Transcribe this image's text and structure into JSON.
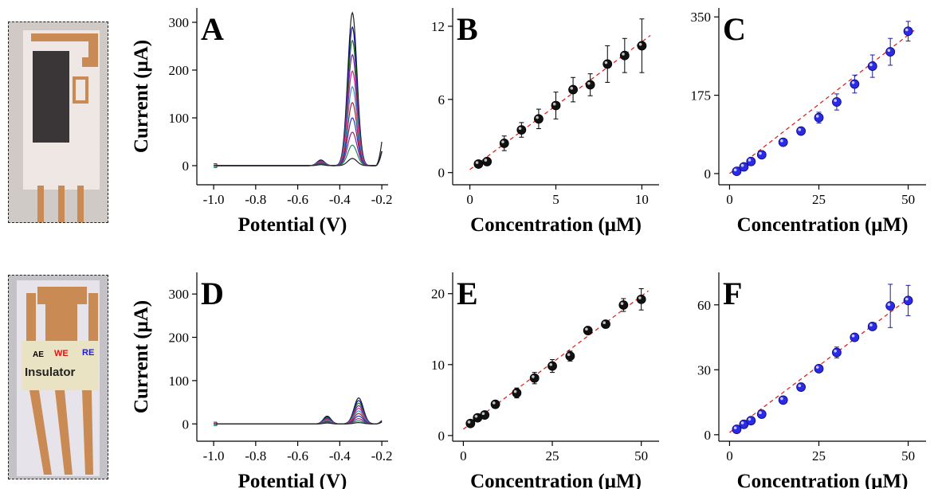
{
  "colors": {
    "curve_palette": [
      "#1f1f1f",
      "#0b0ba8",
      "#1a7a1a",
      "#7a1aa0",
      "#c8287c",
      "#1aa0c8",
      "#c81a1a",
      "#1a3ac8",
      "#a01a7a",
      "#1a8a5a"
    ],
    "fit_line": "#e01414",
    "black_marker": "#111111",
    "blue_marker": "#2a2ae8",
    "copper": "#c98a54",
    "carbon": "#3a3536"
  },
  "photos": [
    {
      "id": "photo-top",
      "labels": []
    },
    {
      "id": "photo-bottom",
      "labels": [
        {
          "text": "AE",
          "color": "#000000"
        },
        {
          "text": "WE",
          "color": "#e01414"
        },
        {
          "text": "RE",
          "color": "#1a1ae0"
        },
        {
          "text": "Insulator",
          "color": "#222222"
        }
      ]
    }
  ],
  "chart_data": [
    {
      "panel": "A",
      "type": "line",
      "xlabel": "Potential (V)",
      "ylabel": "Current (μA)",
      "xlim": [
        -1.08,
        -0.17
      ],
      "ylim": [
        -40,
        330
      ],
      "xticks": [
        -1.0,
        -0.8,
        -0.6,
        -0.4,
        -0.2
      ],
      "xtick_labels": [
        "-1.0",
        "-0.8",
        "-0.6",
        "-0.4",
        "-0.2"
      ],
      "yticks": [
        0,
        100,
        200,
        300
      ],
      "ytick_labels": [
        "0",
        "100",
        "200",
        "300"
      ],
      "x_range": [
        -1.0,
        -0.2
      ],
      "peak_potential": -0.34,
      "peak_heights": [
        320,
        290,
        262,
        232,
        198,
        165,
        132,
        100,
        70,
        43,
        15
      ],
      "secondary_peak_potential": -0.49,
      "secondary_peak_heights": [
        12,
        11,
        10,
        9,
        8,
        7,
        6,
        5,
        4,
        3,
        2
      ]
    },
    {
      "panel": "B",
      "type": "scatter",
      "xlabel": "Concentration (μM)",
      "ylabel": "",
      "xlim": [
        -1.0,
        11.0
      ],
      "ylim": [
        -1.0,
        13.5
      ],
      "xticks": [
        0,
        5,
        10
      ],
      "xtick_labels": [
        "0",
        "5",
        "10"
      ],
      "yticks": [
        0,
        6,
        12
      ],
      "ytick_labels": [
        "0",
        "6",
        "12"
      ],
      "x": [
        0.5,
        1,
        2,
        3,
        4,
        5,
        6,
        7,
        8,
        9,
        10
      ],
      "y": [
        0.7,
        0.9,
        2.4,
        3.5,
        4.4,
        5.5,
        6.8,
        7.2,
        8.9,
        9.6,
        10.4
      ],
      "yerr": [
        0.2,
        0.2,
        0.6,
        0.6,
        0.8,
        1.1,
        1.0,
        0.9,
        1.5,
        1.4,
        2.2
      ],
      "fit": {
        "x": [
          0,
          10.5
        ],
        "y": [
          0.25,
          11.25
        ]
      },
      "marker": "black"
    },
    {
      "panel": "C",
      "type": "scatter",
      "xlabel": "Concentration (μM)",
      "ylabel": "",
      "xlim": [
        -3,
        55
      ],
      "ylim": [
        -25,
        370
      ],
      "xticks": [
        0,
        25,
        50
      ],
      "xtick_labels": [
        "0",
        "25",
        "50"
      ],
      "yticks": [
        0,
        175,
        350
      ],
      "ytick_labels": [
        "0",
        "175",
        "350"
      ],
      "x": [
        2,
        4,
        6,
        9,
        15,
        20,
        25,
        30,
        35,
        40,
        45,
        50
      ],
      "y": [
        5,
        15,
        27,
        42,
        70,
        95,
        125,
        160,
        200,
        240,
        272,
        318
      ],
      "yerr": [
        2,
        3,
        4,
        5,
        5,
        6,
        12,
        18,
        20,
        25,
        30,
        22
      ],
      "fit": {
        "x": [
          0,
          52
        ],
        "y": [
          0,
          322
        ]
      },
      "marker": "blue"
    },
    {
      "panel": "D",
      "type": "line",
      "xlabel": "Potential (V)",
      "ylabel": "Current (μA)",
      "xlim": [
        -1.08,
        -0.17
      ],
      "ylim": [
        -40,
        350
      ],
      "xticks": [
        -1.0,
        -0.8,
        -0.6,
        -0.4,
        -0.2
      ],
      "xtick_labels": [
        "-1.0",
        "-0.8",
        "-0.6",
        "-0.4",
        "-0.2"
      ],
      "yticks": [
        0,
        100,
        200,
        300
      ],
      "ytick_labels": [
        "0",
        "100",
        "200",
        "300"
      ],
      "x_range": [
        -1.0,
        -0.2
      ],
      "peak_potential": -0.31,
      "peak_heights": [
        60,
        54,
        48,
        42,
        36,
        30,
        24,
        18,
        12,
        7,
        3
      ],
      "secondary_peak_potential": -0.46,
      "secondary_peak_heights": [
        18,
        16,
        14,
        12,
        10,
        8,
        6,
        5,
        4,
        3,
        2
      ]
    },
    {
      "panel": "E",
      "type": "scatter",
      "xlabel": "Concentration (μM)",
      "ylabel": "",
      "xlim": [
        -3,
        55
      ],
      "ylim": [
        -0.8,
        23
      ],
      "xticks": [
        0,
        25,
        50
      ],
      "xtick_labels": [
        "0",
        "25",
        "50"
      ],
      "yticks": [
        0,
        10,
        20
      ],
      "ytick_labels": [
        "0",
        "10",
        "20"
      ],
      "x": [
        2,
        4,
        6,
        9,
        15,
        20,
        25,
        30,
        35,
        40,
        45,
        50
      ],
      "y": [
        1.7,
        2.5,
        2.9,
        4.4,
        6.0,
        8.1,
        9.8,
        11.2,
        14.8,
        15.7,
        18.4,
        19.2
      ],
      "yerr": [
        0.2,
        0.3,
        0.3,
        0.3,
        0.7,
        0.8,
        0.9,
        0.7,
        0.4,
        0.4,
        0.9,
        1.5
      ],
      "fit": {
        "x": [
          0,
          52
        ],
        "y": [
          0.9,
          20.4
        ]
      },
      "marker": "black"
    },
    {
      "panel": "F",
      "type": "scatter",
      "xlabel": "Concentration (μM)",
      "ylabel": "",
      "xlim": [
        -3,
        55
      ],
      "ylim": [
        -3,
        75
      ],
      "xticks": [
        0,
        25,
        50
      ],
      "xtick_labels": [
        "0",
        "25",
        "50"
      ],
      "yticks": [
        0,
        30,
        60
      ],
      "ytick_labels": [
        "0",
        "30",
        "60"
      ],
      "x": [
        2,
        4,
        6,
        9,
        15,
        20,
        25,
        30,
        35,
        40,
        45,
        50
      ],
      "y": [
        2.5,
        4.8,
        6.5,
        9.5,
        16,
        22,
        30.5,
        38,
        45,
        50,
        59.5,
        62
      ],
      "yerr": [
        0.5,
        0.6,
        0.6,
        0.8,
        1,
        1,
        1.2,
        2.5,
        1.5,
        1.2,
        10,
        7
      ],
      "fit": {
        "x": [
          0,
          51
        ],
        "y": [
          1.0,
          64.0
        ]
      },
      "marker": "blue"
    }
  ]
}
